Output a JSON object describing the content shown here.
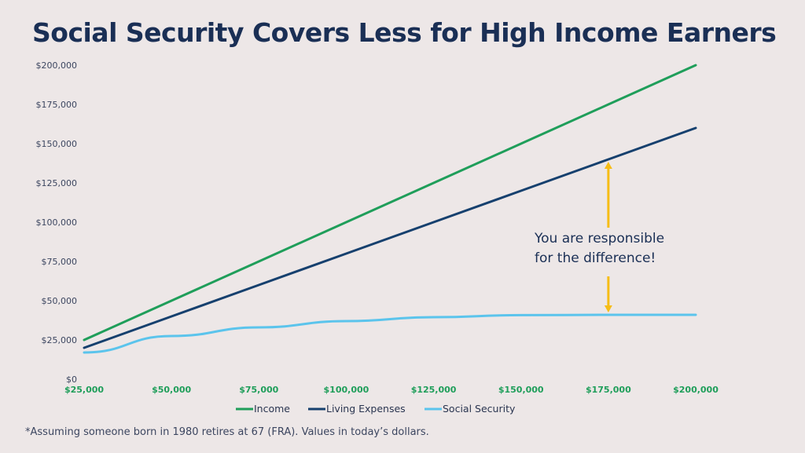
{
  "chart_data": {
    "type": "line",
    "title": "Social Security Covers Less for High Income Earners",
    "xlabel": "",
    "ylabel": "",
    "x": [
      25000,
      50000,
      75000,
      100000,
      125000,
      150000,
      175000,
      200000
    ],
    "x_tick_labels": [
      "$25,000",
      "$50,000",
      "$75,000",
      "$100,000",
      "$125,000",
      "$150,000",
      "$175,000",
      "$200,000"
    ],
    "y_tick_labels": [
      "$0",
      "$25,000",
      "$50,000",
      "$75,000",
      "$100,000",
      "$125,000",
      "$150,000",
      "$175,000",
      "$200,000"
    ],
    "y_ticks": [
      0,
      25000,
      50000,
      75000,
      100000,
      125000,
      150000,
      175000,
      200000
    ],
    "xlim": [
      25000,
      200000
    ],
    "ylim": [
      0,
      200000
    ],
    "grid": false,
    "legend_placement": "bottom",
    "series": [
      {
        "name": "Income",
        "color": "#1f9e5a",
        "values": [
          25000,
          50000,
          75000,
          100000,
          125000,
          150000,
          175000,
          200000
        ]
      },
      {
        "name": "Living Expenses",
        "color": "#16406e",
        "values": [
          20000,
          40000,
          60000,
          80000,
          100000,
          120000,
          140000,
          160000
        ]
      },
      {
        "name": "Social Security",
        "color": "#5bc4ec",
        "values": [
          17000,
          27500,
          33000,
          37000,
          39500,
          40800,
          41000,
          41000
        ]
      }
    ],
    "annotation": {
      "lines": [
        "You are responsible",
        "for the difference!"
      ],
      "arrow_color": "#f6bd16",
      "arrow_x": 175000,
      "arrow_from": 41000,
      "arrow_to": 140000
    },
    "x_tick_color": "#1f9e5a"
  },
  "footnote": "*Assuming someone born in 1980 retires at 67 (FRA). Values in today’s dollars."
}
